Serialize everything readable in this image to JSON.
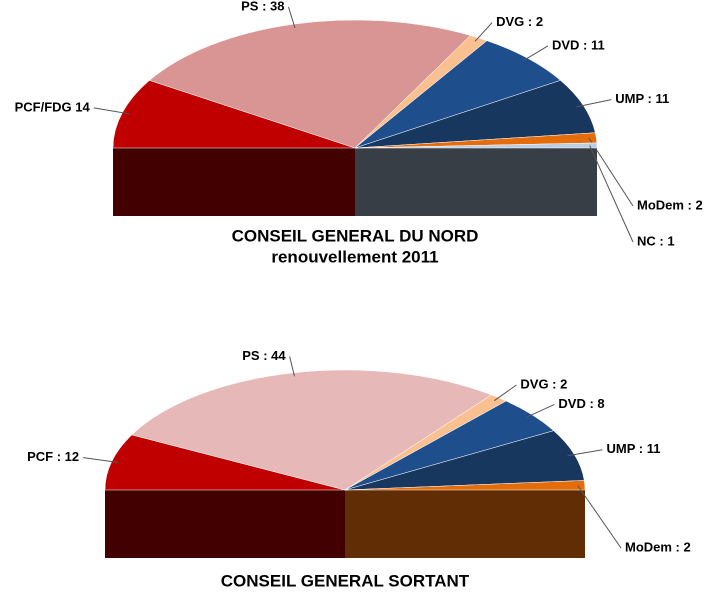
{
  "chart_data": [
    {
      "type": "halfpie",
      "title": "CONSEIL GENERAL DU NORD",
      "subtitle": "renouvellement 2011",
      "values": [
        14,
        38,
        2,
        11,
        11,
        2,
        1
      ],
      "value_labels": [
        "PCF/FDG 14",
        "PS : 38",
        "DVG : 2",
        "DVD : 11",
        "UMP : 11",
        "MoDem : 2",
        "NC : 1"
      ],
      "colors": [
        "#c00000",
        "#d99594",
        "#fac090",
        "#1f4e8c",
        "#17375e",
        "#e46c0a",
        "#b9cde5"
      ]
    },
    {
      "type": "halfpie",
      "title": "CONSEIL GENERAL SORTANT",
      "values": [
        12,
        44,
        2,
        8,
        11,
        2
      ],
      "value_labels": [
        "PCF : 12",
        "PS : 44",
        "DVG : 2",
        "DVD : 8",
        "UMP : 11",
        "MoDem : 2"
      ],
      "colors": [
        "#c00000",
        "#e6b9b8",
        "#fac090",
        "#1f4e8c",
        "#17375e",
        "#e46c0a"
      ]
    }
  ]
}
